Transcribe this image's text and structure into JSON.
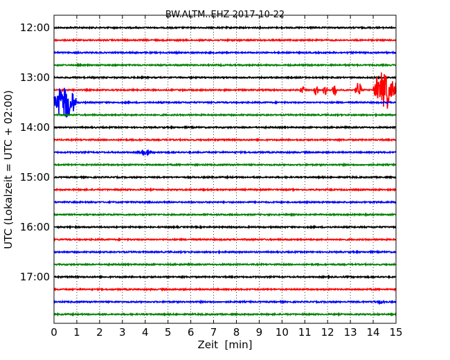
{
  "chart_data": {
    "type": "line",
    "title": "BW.ALTM..EHZ 2017-10-22",
    "xlabel": "Zeit  [min]",
    "ylabel": "UTC (Lokalzeit = UTC + 02:00)",
    "xlim": [
      0,
      15
    ],
    "x_ticks": [
      "0",
      "1",
      "2",
      "3",
      "4",
      "5",
      "6",
      "7",
      "8",
      "9",
      "10",
      "11",
      "12",
      "13",
      "14",
      "15"
    ],
    "y_ticks": [
      {
        "label": "12:00",
        "trace_index": 0
      },
      {
        "label": "13:00",
        "trace_index": 4
      },
      {
        "label": "14:00",
        "trace_index": 8
      },
      {
        "label": "15:00",
        "trace_index": 12
      },
      {
        "label": "16:00",
        "trace_index": 16
      },
      {
        "label": "17:00",
        "trace_index": 20
      }
    ],
    "trace_interval_minutes": 15,
    "trace_colors": [
      "#000000",
      "#ff0000",
      "#0000ff",
      "#008000"
    ],
    "trace_count": 24,
    "grid": "vertical-dotted",
    "events": [
      {
        "trace_index": 5,
        "start_min": 10.8,
        "end_min": 11.0,
        "amplitude": 0.45
      },
      {
        "trace_index": 5,
        "start_min": 11.4,
        "end_min": 11.6,
        "amplitude": 0.6
      },
      {
        "trace_index": 5,
        "start_min": 11.8,
        "end_min": 12.0,
        "amplitude": 0.55
      },
      {
        "trace_index": 5,
        "start_min": 12.2,
        "end_min": 12.4,
        "amplitude": 0.75
      },
      {
        "trace_index": 5,
        "start_min": 13.2,
        "end_min": 13.5,
        "amplitude": 0.8
      },
      {
        "trace_index": 5,
        "start_min": 14.0,
        "end_min": 15.0,
        "amplitude": 2.0
      },
      {
        "trace_index": 6,
        "start_min": 0.0,
        "end_min": 1.0,
        "amplitude": 1.8
      },
      {
        "trace_index": 10,
        "start_min": 3.7,
        "end_min": 4.3,
        "amplitude": 0.35
      },
      {
        "trace_index": 22,
        "start_min": 14.0,
        "end_min": 14.5,
        "amplitude": 0.25
      }
    ]
  }
}
